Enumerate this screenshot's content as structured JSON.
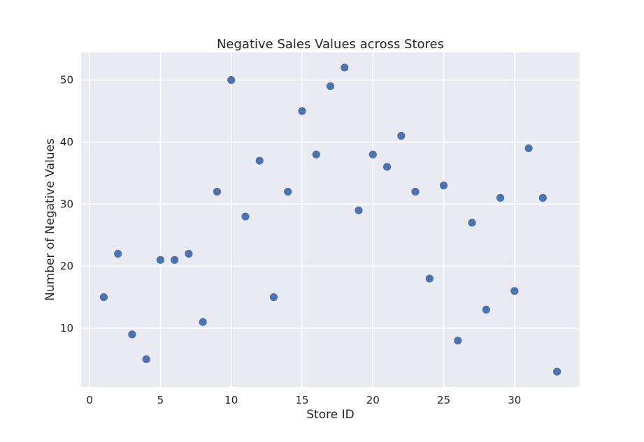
{
  "chart_data": {
    "type": "scatter",
    "title": "Negative Sales Values across Stores",
    "xlabel": "Store ID",
    "ylabel": "Number of Negative Values",
    "xlim": [
      -0.6,
      34.6
    ],
    "ylim": [
      0.55,
      54.45
    ],
    "xticks": [
      0,
      5,
      10,
      15,
      20,
      25,
      30
    ],
    "yticks": [
      10,
      20,
      30,
      40,
      50
    ],
    "grid": true,
    "colors": {
      "background": "#eaeaf2",
      "point": "#4c72b0",
      "grid": "#ffffff"
    },
    "points": [
      {
        "x": 1,
        "y": 15
      },
      {
        "x": 2,
        "y": 22
      },
      {
        "x": 3,
        "y": 9
      },
      {
        "x": 4,
        "y": 5
      },
      {
        "x": 5,
        "y": 21
      },
      {
        "x": 6,
        "y": 21
      },
      {
        "x": 7,
        "y": 22
      },
      {
        "x": 8,
        "y": 11
      },
      {
        "x": 9,
        "y": 32
      },
      {
        "x": 10,
        "y": 50
      },
      {
        "x": 11,
        "y": 28
      },
      {
        "x": 12,
        "y": 37
      },
      {
        "x": 13,
        "y": 15
      },
      {
        "x": 14,
        "y": 32
      },
      {
        "x": 15,
        "y": 45
      },
      {
        "x": 16,
        "y": 38
      },
      {
        "x": 17,
        "y": 49
      },
      {
        "x": 18,
        "y": 52
      },
      {
        "x": 19,
        "y": 29
      },
      {
        "x": 20,
        "y": 38
      },
      {
        "x": 21,
        "y": 36
      },
      {
        "x": 22,
        "y": 41
      },
      {
        "x": 23,
        "y": 32
      },
      {
        "x": 24,
        "y": 18
      },
      {
        "x": 25,
        "y": 33
      },
      {
        "x": 26,
        "y": 8
      },
      {
        "x": 27,
        "y": 27
      },
      {
        "x": 28,
        "y": 13
      },
      {
        "x": 29,
        "y": 31
      },
      {
        "x": 30,
        "y": 16
      },
      {
        "x": 31,
        "y": 39
      },
      {
        "x": 32,
        "y": 31
      },
      {
        "x": 33,
        "y": 3
      }
    ]
  }
}
